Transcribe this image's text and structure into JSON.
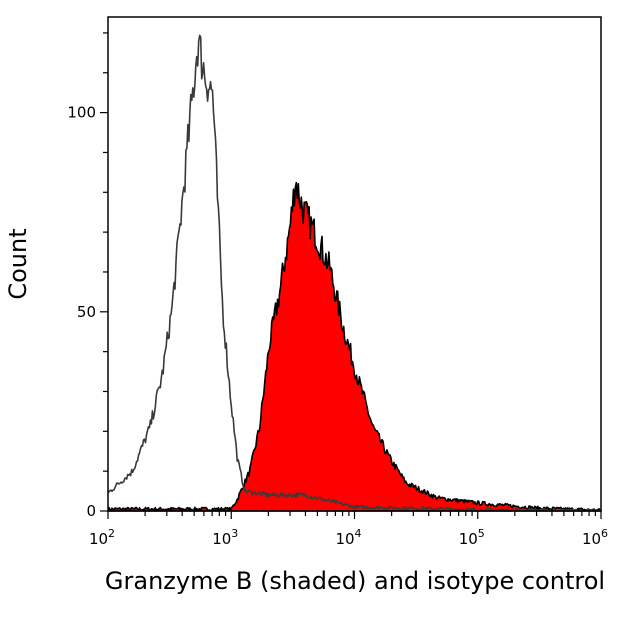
{
  "chart_data": {
    "type": "area",
    "title": "",
    "xlabel": "Granzyme B (shaded) and isotype control",
    "ylabel": "Count",
    "x_scale": "log",
    "xlim": [
      100,
      1000000
    ],
    "ylim": [
      0,
      124
    ],
    "x_ticks": [
      {
        "base": "10",
        "exp": "2",
        "value": 100
      },
      {
        "base": "10",
        "exp": "3",
        "value": 1000
      },
      {
        "base": "10",
        "exp": "4",
        "value": 10000
      },
      {
        "base": "10",
        "exp": "5",
        "value": 100000
      },
      {
        "base": "10",
        "exp": "6",
        "value": 1000000
      }
    ],
    "y_ticks": [
      {
        "label": "0",
        "value": 0
      },
      {
        "label": "50",
        "value": 50
      },
      {
        "label": "100",
        "value": 100
      }
    ],
    "grid": false,
    "legend": "none",
    "series": [
      {
        "id": "granzyme",
        "style": "filled",
        "fill": "#ff0000",
        "stroke": "#000000",
        "x": [
          100,
          1000,
          1122,
          1413,
          1698,
          2042,
          2512,
          3020,
          3311,
          3802,
          4898,
          6310,
          8128,
          10471,
          14125,
          19498,
          26303,
          46774,
          100000,
          316228,
          1000000
        ],
        "y": [
          0.5,
          0.5,
          3,
          10,
          21,
          42,
          56,
          72,
          83,
          76,
          69,
          61,
          46,
          34,
          21,
          13,
          7,
          3.3,
          2,
          0.7,
          0.2
        ]
      },
      {
        "id": "isotype",
        "style": "line",
        "stroke": "#3a3a3a",
        "x": [
          100,
          158,
          219,
          275,
          331,
          385,
          447,
          537,
          617,
          708,
          759,
          851,
          977,
          1122,
          1288,
          1995,
          3981,
          10000,
          100000,
          1000000
        ],
        "y": [
          4.5,
          10,
          21,
          34,
          51,
          72,
          93,
          118,
          109,
          105,
          84,
          51,
          30,
          13,
          5,
          4,
          4,
          1,
          0.3,
          0
        ]
      }
    ]
  }
}
